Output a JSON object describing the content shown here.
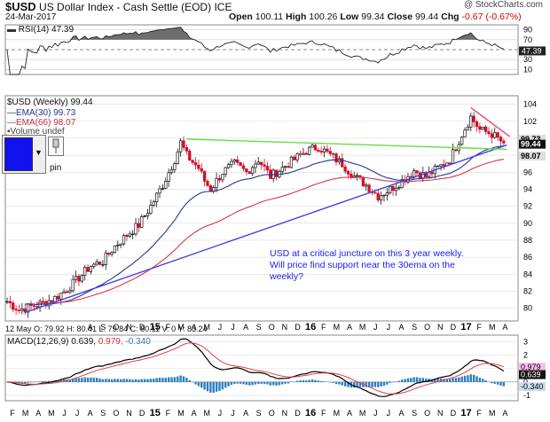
{
  "header": {
    "symbol": "$USD",
    "name": "US Dollar Index - Cash Settle (EOD)",
    "exchange": "ICE",
    "date": "24-Mar-2017",
    "brand": "@ StockCharts.com"
  },
  "ohlc": {
    "open_label": "Open",
    "open": "100.11",
    "high_label": "High",
    "high": "100.26",
    "low_label": "Low",
    "low": "99.34",
    "close_label": "Close",
    "close": "99.44",
    "chg_label": "Chg",
    "chg": "-0.67 (-0.67%)"
  },
  "legend": {
    "rsi": "RSI(14) 47.39",
    "price": "$USD (Weekly) 99.44",
    "ema30": "EMA(30) 99.73",
    "ema66": "EMA(66) 98.07",
    "volume": "Volume undef",
    "macd_prefix": "MACD(12,26,9)",
    "macd_value": "0.639,",
    "macd_signal": "0.979,",
    "macd_hist": "-0.340"
  },
  "controls": {
    "pin": "pin",
    "arrow": "▼"
  },
  "infobar": "12 May  O: 79.92  H: 80.41  L: 79.84  C: 80.11  V: 0  Y: 83.24",
  "annotation": "USD at a critical juncture on this 3 year weekly. Will price find support near the 30ema on the weekly?",
  "colors": {
    "up": "#111111",
    "down": "#d0102a",
    "ema30": "#223a8a",
    "ema66": "#d03a4a",
    "uptrend": "#4444dd",
    "resistance": "#66dd44",
    "downtrend": "#ee4466",
    "rsi_fill": "#555555",
    "macd": "#000000",
    "macd_signal": "#e04040",
    "macd_hist": "#2a7fc0"
  },
  "chart_data": {
    "type": "candlestick",
    "period": "weekly",
    "x_labels": [
      "F",
      "M",
      "A",
      "M",
      "J",
      "J",
      "A",
      "S",
      "O",
      "N",
      "D",
      "15",
      "F",
      "M",
      "A",
      "M",
      "J",
      "J",
      "A",
      "S",
      "O",
      "N",
      "D",
      "16",
      "F",
      "M",
      "A",
      "M",
      "J",
      "J",
      "A",
      "S",
      "O",
      "N",
      "D",
      "17",
      "F",
      "M",
      "A"
    ],
    "price_axis": {
      "ticks": [
        80,
        82,
        84,
        86,
        88,
        90,
        92,
        94,
        96,
        98,
        100,
        102,
        104
      ],
      "range": [
        78.5,
        105
      ]
    },
    "price_tags": {
      "ema30": "99.73",
      "close": "99.44",
      "ema66": "98.07"
    },
    "rsi_axis": {
      "ticks": [
        10,
        30,
        50,
        70,
        90
      ],
      "range": [
        0,
        100
      ],
      "value": "47.39"
    },
    "macd_axis": {
      "ticks": [
        -1,
        0,
        1,
        2,
        3
      ],
      "range": [
        -1.4,
        3.5
      ],
      "tags": [
        "0.979",
        "0.639",
        "-0.340"
      ]
    },
    "price_anchors": [
      [
        0,
        80.8
      ],
      [
        4,
        79.8
      ],
      [
        8,
        80.2
      ],
      [
        12,
        80.6
      ],
      [
        16,
        81.2
      ],
      [
        20,
        82.2
      ],
      [
        24,
        83.6
      ],
      [
        28,
        85.0
      ],
      [
        32,
        85.5
      ],
      [
        36,
        87.3
      ],
      [
        40,
        88.6
      ],
      [
        44,
        89.8
      ],
      [
        48,
        92.0
      ],
      [
        52,
        94.5
      ],
      [
        56,
        97.5
      ],
      [
        58,
        99.5
      ],
      [
        60,
        98.0
      ],
      [
        62,
        97.2
      ],
      [
        64,
        96.5
      ],
      [
        66,
        95.0
      ],
      [
        68,
        94.0
      ],
      [
        72,
        96.0
      ],
      [
        76,
        97.0
      ],
      [
        80,
        96.0
      ],
      [
        84,
        97.5
      ],
      [
        88,
        95.5
      ],
      [
        92,
        96.5
      ],
      [
        96,
        97.5
      ],
      [
        100,
        98.5
      ],
      [
        104,
        99.0
      ],
      [
        108,
        98.0
      ],
      [
        112,
        97.0
      ],
      [
        116,
        95.5
      ],
      [
        120,
        94.5
      ],
      [
        124,
        93.2
      ],
      [
        128,
        94.0
      ],
      [
        132,
        95.0
      ],
      [
        136,
        96.2
      ],
      [
        140,
        95.5
      ],
      [
        144,
        96.5
      ],
      [
        148,
        97.5
      ],
      [
        152,
        100.5
      ],
      [
        155,
        102.5
      ],
      [
        158,
        101.0
      ],
      [
        162,
        100.5
      ],
      [
        166,
        99.4
      ]
    ],
    "trendlines": [
      {
        "name": "uptrend",
        "from": [
          6,
          79.5
        ],
        "to": [
          167,
          99.2
        ]
      },
      {
        "name": "resistance",
        "from": [
          60,
          99.9
        ],
        "to": [
          167,
          98.7
        ]
      },
      {
        "name": "downtrend",
        "from": [
          155,
          103.6
        ],
        "to": [
          168,
          100.2
        ]
      }
    ]
  }
}
